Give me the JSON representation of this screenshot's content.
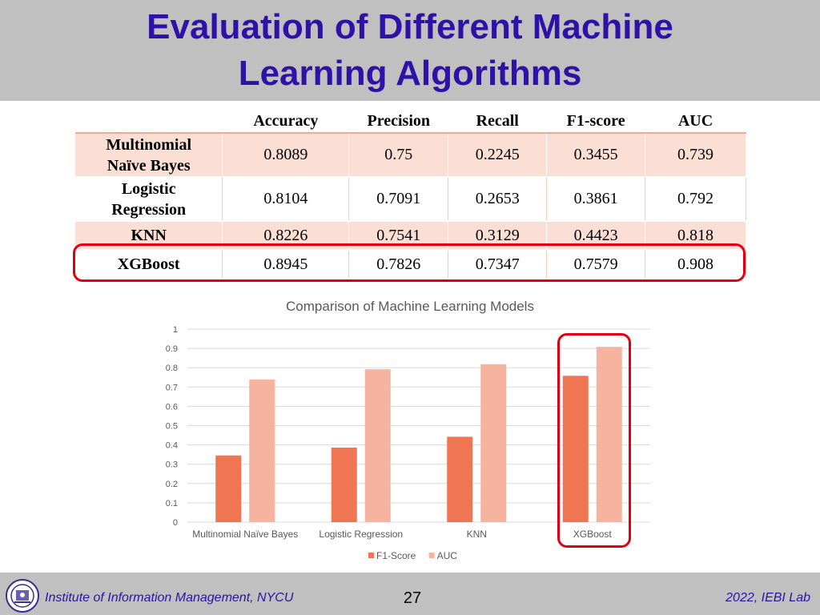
{
  "title_lines": [
    "Evaluation of Different Machine",
    "Learning Algorithms"
  ],
  "table": {
    "columns": [
      "Accuracy",
      "Precision",
      "Recall",
      "F1-score",
      "AUC"
    ],
    "rows": [
      {
        "name_lines": [
          "Multinomial",
          "Naïve Bayes"
        ],
        "values": [
          "0.8089",
          "0.75",
          "0.2245",
          "0.3455",
          "0.739"
        ]
      },
      {
        "name_lines": [
          "Logistic",
          "Regression"
        ],
        "values": [
          "0.8104",
          "0.7091",
          "0.2653",
          "0.3861",
          "0.792"
        ]
      },
      {
        "name_lines": [
          "KNN"
        ],
        "values": [
          "0.8226",
          "0.7541",
          "0.3129",
          "0.4423",
          "0.818"
        ]
      },
      {
        "name_lines": [
          "XGBoost"
        ],
        "values": [
          "0.8945",
          "0.7826",
          "0.7347",
          "0.7579",
          "0.908"
        ]
      }
    ]
  },
  "chart_data": {
    "type": "bar",
    "title": "Comparison of Machine Learning Models",
    "categories": [
      "Multinomial Naïve Bayes",
      "Logistic Regression",
      "KNN",
      "XGBoost"
    ],
    "series": [
      {
        "name": "F1-Score",
        "values": [
          0.3455,
          0.3861,
          0.4423,
          0.7579
        ],
        "color": "#ef7553"
      },
      {
        "name": "AUC",
        "values": [
          0.739,
          0.792,
          0.818,
          0.908
        ],
        "color": "#f6b3a0"
      }
    ],
    "ylim": [
      0,
      1
    ],
    "yticks": [
      "0",
      "0.1",
      "0.2",
      "0.3",
      "0.4",
      "0.5",
      "0.6",
      "0.7",
      "0.8",
      "0.9",
      "1"
    ],
    "grid": true,
    "legend": "bottom",
    "highlighted_category": "XGBoost"
  },
  "colors": {
    "title": "#2d12a8",
    "band": "#c0c0c0",
    "highlight": "#e00012",
    "table_row_tint": "#fbded4"
  },
  "footer": {
    "left": "Institute of Information Management, NYCU",
    "page": "27",
    "right": "2022, IEBI Lab",
    "logo_icon": "nycu-seal-icon"
  }
}
